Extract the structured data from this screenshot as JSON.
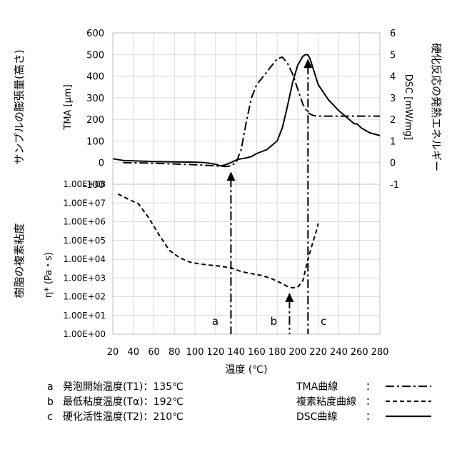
{
  "chart_data": [
    {
      "panel": "top",
      "type": "line",
      "xlim": [
        20,
        280
      ],
      "xticks": [
        20,
        40,
        60,
        80,
        100,
        120,
        140,
        160,
        180,
        200,
        220,
        240,
        260,
        280
      ],
      "xlabel": "温度 (℃)",
      "ylabel_left_outer": "サンプルの膨張量(高さ)",
      "ylabel_left": "TMA [μm]",
      "ylim_left": [
        -100,
        600
      ],
      "yticks_left": [
        -100,
        0,
        100,
        200,
        300,
        400,
        500,
        600
      ],
      "ylabel_right": "DSC [mW/mg]",
      "ylabel_right_outer": "硬化反応の発熱エネルギー",
      "ylim_right": [
        -1,
        6
      ],
      "yticks_right": [
        -1,
        0,
        1,
        2,
        3,
        4,
        5,
        6
      ],
      "grid": true,
      "series": [
        {
          "name": "TMA曲線",
          "axis": "left",
          "style": "dashdot",
          "x": [
            30,
            60,
            100,
            120,
            130,
            135,
            140,
            145,
            150,
            155,
            160,
            170,
            175,
            180,
            185,
            190,
            195,
            200,
            205,
            210,
            215,
            220,
            240,
            260,
            280
          ],
          "y": [
            0,
            -3,
            -10,
            -15,
            -18,
            -15,
            0,
            60,
            190,
            300,
            360,
            420,
            450,
            480,
            488,
            460,
            410,
            340,
            270,
            230,
            218,
            215,
            215,
            215,
            215
          ]
        },
        {
          "name": "DSC曲線",
          "axis": "right",
          "style": "solid",
          "x": [
            20,
            30,
            60,
            100,
            110,
            120,
            125,
            130,
            135,
            140,
            145,
            150,
            155,
            160,
            170,
            180,
            185,
            190,
            195,
            200,
            205,
            208,
            210,
            212,
            215,
            220,
            230,
            240,
            250,
            255,
            258,
            262,
            270,
            280
          ],
          "y": [
            0.18,
            0.1,
            0.05,
            0.02,
            0.0,
            -0.08,
            -0.15,
            -0.1,
            0.0,
            0.12,
            0.18,
            0.22,
            0.28,
            0.42,
            0.6,
            1.0,
            1.6,
            2.6,
            3.7,
            4.5,
            4.92,
            5.0,
            4.98,
            4.8,
            4.35,
            3.6,
            2.9,
            2.4,
            2.0,
            1.8,
            1.78,
            1.6,
            1.38,
            1.25
          ]
        }
      ]
    },
    {
      "panel": "bottom",
      "type": "line",
      "xlim": [
        20,
        280
      ],
      "ylabel_outer": "樹脂の複素粘度",
      "ylabel": "η* (Pa・s)",
      "yscale": "log",
      "ylim": [
        1,
        100000000
      ],
      "yticks": [
        "1.00E+00",
        "1.00E+01",
        "1.00E+02",
        "1.00E+03",
        "1.00E+04",
        "1.00E+05",
        "1.00E+06",
        "1.00E+07",
        "1.00E+08"
      ],
      "ytick_values": [
        1,
        10,
        100,
        1000,
        10000,
        100000,
        1000000,
        10000000,
        100000000
      ],
      "grid": true,
      "series": [
        {
          "name": "複素粘度曲線",
          "style": "dashed",
          "x": [
            25,
            35,
            45,
            55,
            65,
            75,
            85,
            95,
            105,
            115,
            125,
            135,
            145,
            155,
            165,
            175,
            185,
            190,
            195,
            200,
            205,
            210,
            215,
            218,
            220
          ],
          "y": [
            30000000,
            16000000,
            9000000,
            1600000,
            200000,
            30000,
            12000,
            7000,
            5500,
            4800,
            4200,
            3500,
            2200,
            1700,
            1350,
            900,
            500,
            350,
            300,
            320,
            700,
            10000,
            90000,
            300000,
            800000
          ]
        }
      ]
    }
  ],
  "markers": [
    {
      "letter": "a",
      "x": 135,
      "description": "発泡開始温度(T1)：135℃"
    },
    {
      "letter": "b",
      "x": 192,
      "description": "最低粘度温度(Tα)：192℃"
    },
    {
      "letter": "c",
      "x": 210,
      "description": "硬化活性温度(T2)：210℃"
    }
  ],
  "legend": [
    {
      "label": "TMA曲線",
      "colon": "：",
      "style": "dashdot"
    },
    {
      "label": "複素粘度曲線",
      "colon": "：",
      "style": "dashed"
    },
    {
      "label": "DSC曲線",
      "colon": "：",
      "style": "solid"
    }
  ],
  "colors": {
    "line": "#000000",
    "grid": "#d9d9d9",
    "frame": "#bfbfbf"
  }
}
